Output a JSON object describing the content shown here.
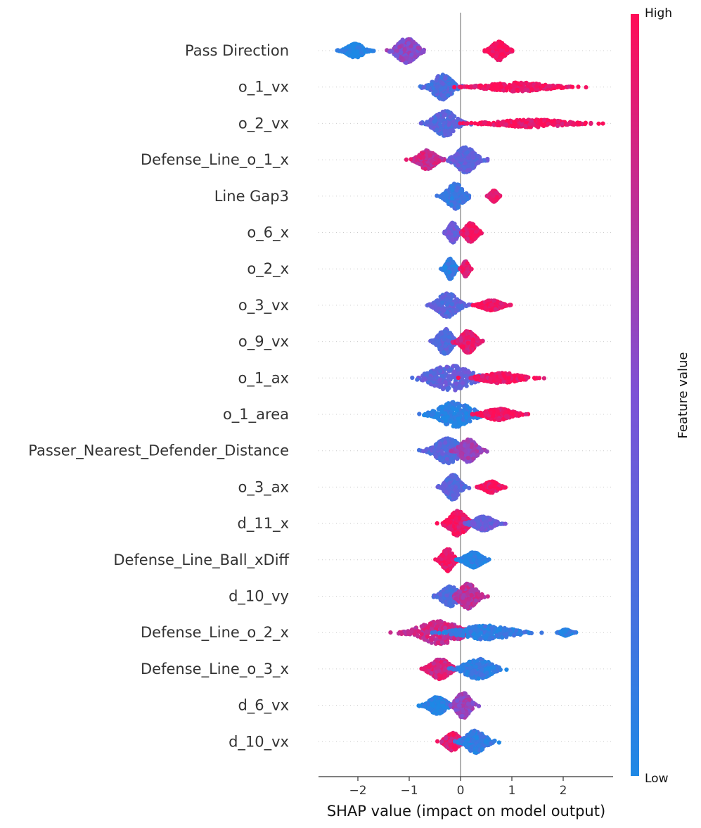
{
  "chart_data": {
    "type": "beeswarm",
    "title": "",
    "xlabel": "SHAP value (impact on model output)",
    "xlim": [
      -2.75,
      2.95
    ],
    "xticks": [
      -2,
      -1,
      0,
      1,
      2
    ],
    "colorbar": {
      "title": "Feature value",
      "high_label": "High",
      "low_label": "Low",
      "low_color": "#1e88e5",
      "high_color": "#ff0d57"
    },
    "features": [
      {
        "name": "Pass Direction",
        "clusters": [
          {
            "center": -2.05,
            "spread": 0.3,
            "height": 0.55,
            "color": 0.02
          },
          {
            "center": -1.05,
            "spread": 0.35,
            "height": 1.0,
            "color": 0.55
          },
          {
            "center": 0.75,
            "spread": 0.25,
            "height": 0.75,
            "color": 0.98
          }
        ]
      },
      {
        "name": "o_1_vx",
        "clusters": [
          {
            "center": -0.35,
            "spread": 0.35,
            "height": 1.0,
            "color": 0.25
          },
          {
            "center": 1.1,
            "spread": 1.1,
            "height": 0.35,
            "color": 0.95
          }
        ]
      },
      {
        "name": "o_2_vx",
        "clusters": [
          {
            "center": -0.3,
            "spread": 0.4,
            "height": 1.0,
            "color": 0.3
          },
          {
            "center": 1.4,
            "spread": 1.25,
            "height": 0.3,
            "color": 0.95
          }
        ]
      },
      {
        "name": "Defense_Line_o_1_x",
        "clusters": [
          {
            "center": -0.65,
            "spread": 0.3,
            "height": 0.75,
            "color": 0.8
          },
          {
            "center": 0.1,
            "spread": 0.35,
            "height": 1.0,
            "color": 0.35
          }
        ]
      },
      {
        "name": "Line Gap3",
        "clusters": [
          {
            "center": -0.1,
            "spread": 0.3,
            "height": 1.0,
            "color": 0.15
          },
          {
            "center": 0.65,
            "spread": 0.12,
            "height": 0.45,
            "color": 0.95
          }
        ]
      },
      {
        "name": "o_6_x",
        "clusters": [
          {
            "center": -0.15,
            "spread": 0.15,
            "height": 0.8,
            "color": 0.4
          },
          {
            "center": 0.2,
            "spread": 0.2,
            "height": 0.75,
            "color": 0.95
          }
        ]
      },
      {
        "name": "o_2_x",
        "clusters": [
          {
            "center": -0.2,
            "spread": 0.15,
            "height": 0.8,
            "color": 0.1
          },
          {
            "center": 0.1,
            "spread": 0.1,
            "height": 0.6,
            "color": 0.9
          }
        ]
      },
      {
        "name": "o_3_vx",
        "clusters": [
          {
            "center": -0.25,
            "spread": 0.35,
            "height": 1.0,
            "color": 0.3
          },
          {
            "center": 0.6,
            "spread": 0.35,
            "height": 0.4,
            "color": 0.95
          }
        ]
      },
      {
        "name": "o_9_vx",
        "clusters": [
          {
            "center": -0.3,
            "spread": 0.25,
            "height": 1.0,
            "color": 0.3
          },
          {
            "center": 0.15,
            "spread": 0.25,
            "height": 0.9,
            "color": 0.9
          }
        ]
      },
      {
        "name": "o_1_ax",
        "clusters": [
          {
            "center": -0.2,
            "spread": 0.75,
            "height": 1.0,
            "color": 0.35
          },
          {
            "center": 0.8,
            "spread": 0.7,
            "height": 0.4,
            "color": 0.95
          }
        ]
      },
      {
        "name": "o_1_area",
        "clusters": [
          {
            "center": -0.1,
            "spread": 0.6,
            "height": 1.0,
            "color": 0.05
          },
          {
            "center": 0.75,
            "spread": 0.5,
            "height": 0.45,
            "color": 0.95
          }
        ]
      },
      {
        "name": "Passer_Nearest_Defender_Distance",
        "clusters": [
          {
            "center": -0.25,
            "spread": 0.45,
            "height": 1.0,
            "color": 0.3
          },
          {
            "center": 0.15,
            "spread": 0.3,
            "height": 0.9,
            "color": 0.6
          }
        ]
      },
      {
        "name": "o_3_ax",
        "clusters": [
          {
            "center": -0.15,
            "spread": 0.25,
            "height": 1.0,
            "color": 0.3
          },
          {
            "center": 0.6,
            "spread": 0.25,
            "height": 0.45,
            "color": 0.95
          }
        ]
      },
      {
        "name": "d_11_x",
        "clusters": [
          {
            "center": -0.05,
            "spread": 0.3,
            "height": 1.0,
            "color": 0.95
          },
          {
            "center": 0.45,
            "spread": 0.35,
            "height": 0.55,
            "color": 0.4
          }
        ]
      },
      {
        "name": "Defense_Line_Ball_xDiff",
        "clusters": [
          {
            "center": -0.25,
            "spread": 0.2,
            "height": 0.9,
            "color": 0.95
          },
          {
            "center": 0.25,
            "spread": 0.3,
            "height": 0.6,
            "color": 0.05
          }
        ]
      },
      {
        "name": "d_10_vy",
        "clusters": [
          {
            "center": -0.2,
            "spread": 0.3,
            "height": 0.8,
            "color": 0.25
          },
          {
            "center": 0.15,
            "spread": 0.3,
            "height": 1.0,
            "color": 0.75
          }
        ]
      },
      {
        "name": "Defense_Line_o_2_x",
        "clusters": [
          {
            "center": -0.4,
            "spread": 0.8,
            "height": 0.9,
            "color": 0.8
          },
          {
            "center": 0.5,
            "spread": 0.95,
            "height": 0.55,
            "color": 0.1
          },
          {
            "center": 2.05,
            "spread": 0.15,
            "height": 0.25,
            "color": 0.05
          }
        ]
      },
      {
        "name": "Defense_Line_o_3_x",
        "clusters": [
          {
            "center": -0.4,
            "spread": 0.35,
            "height": 0.8,
            "color": 0.85
          },
          {
            "center": 0.35,
            "spread": 0.5,
            "height": 0.8,
            "color": 0.1
          }
        ]
      },
      {
        "name": "d_6_vx",
        "clusters": [
          {
            "center": -0.45,
            "spread": 0.3,
            "height": 0.7,
            "color": 0.05
          },
          {
            "center": 0.05,
            "spread": 0.25,
            "height": 1.0,
            "color": 0.6
          }
        ]
      },
      {
        "name": "d_10_vx",
        "clusters": [
          {
            "center": -0.15,
            "spread": 0.25,
            "height": 0.7,
            "color": 0.9
          },
          {
            "center": 0.3,
            "spread": 0.35,
            "height": 0.9,
            "color": 0.1
          }
        ]
      }
    ]
  }
}
